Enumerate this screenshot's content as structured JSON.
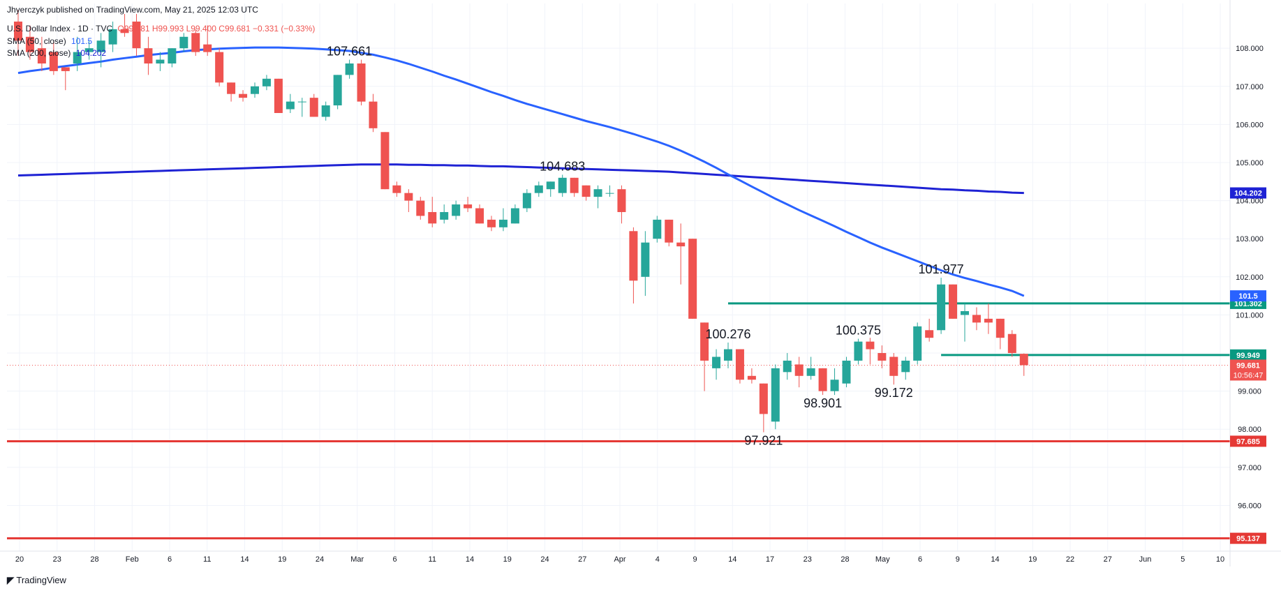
{
  "header": {
    "published_by": "Jhyerczyk published on TradingView.com, May 21, 2025 12:03 UTC",
    "symbol": "U.S. Dollar Index · 1D · TVC",
    "ohlc": "O99.981 H99.993 L99.400 C99.681 −0.331 (−0.33%)",
    "sma50_label": "SMA (50, close)",
    "sma50_value": "101.5",
    "sma200_label": "SMA (200, close)",
    "sma200_value": "104.202"
  },
  "footer": {
    "logo_text": "TradingView"
  },
  "colors": {
    "up": "#26a69a",
    "down": "#ef5350",
    "sma50": "#2962ff",
    "sma200": "#1e22d4",
    "support_red": "#e53935",
    "resistance_green": "#089981",
    "grid": "#f0f3fa",
    "axis_text": "#131722"
  },
  "chart_data": {
    "type": "candlestick",
    "title": "U.S. Dollar Index · 1D · TVC",
    "ylim": [
      94.8,
      108.9
    ],
    "y_ticks": [
      "96.000",
      "97.000",
      "98.000",
      "99.000",
      "100.000",
      "101.000",
      "102.000",
      "103.000",
      "104.000",
      "105.000",
      "106.000",
      "107.000",
      "108.000"
    ],
    "x_ticks": [
      "20",
      "23",
      "28",
      "Feb",
      "6",
      "11",
      "14",
      "19",
      "24",
      "Mar",
      "6",
      "11",
      "14",
      "19",
      "24",
      "27",
      "Apr",
      "4",
      "9",
      "14",
      "17",
      "23",
      "28",
      "May",
      "6",
      "9",
      "14",
      "19",
      "22",
      "27",
      "Jun",
      "5",
      "10"
    ],
    "grid": true,
    "candles": [
      {
        "o": 108.7,
        "h": 109.0,
        "l": 107.8,
        "c": 108.2
      },
      {
        "o": 108.3,
        "h": 108.6,
        "l": 107.7,
        "c": 107.9
      },
      {
        "o": 108.0,
        "h": 108.3,
        "l": 107.4,
        "c": 107.6
      },
      {
        "o": 107.9,
        "h": 108.2,
        "l": 107.3,
        "c": 107.4
      },
      {
        "o": 107.5,
        "h": 107.5,
        "l": 106.9,
        "c": 107.4
      },
      {
        "o": 107.6,
        "h": 108.3,
        "l": 107.4,
        "c": 107.9
      },
      {
        "o": 107.9,
        "h": 108.2,
        "l": 107.7,
        "c": 108.0
      },
      {
        "o": 107.9,
        "h": 108.4,
        "l": 107.5,
        "c": 108.2
      },
      {
        "o": 108.1,
        "h": 108.7,
        "l": 107.9,
        "c": 108.5
      },
      {
        "o": 108.5,
        "h": 108.9,
        "l": 108.3,
        "c": 108.4
      },
      {
        "o": 108.7,
        "h": 108.9,
        "l": 107.8,
        "c": 108.0
      },
      {
        "o": 108.0,
        "h": 108.3,
        "l": 107.3,
        "c": 107.6
      },
      {
        "o": 107.6,
        "h": 107.9,
        "l": 107.4,
        "c": 107.7
      },
      {
        "o": 107.6,
        "h": 108.0,
        "l": 107.5,
        "c": 108.0
      },
      {
        "o": 108.0,
        "h": 108.4,
        "l": 107.9,
        "c": 108.3
      },
      {
        "o": 108.4,
        "h": 108.5,
        "l": 107.8,
        "c": 107.9
      },
      {
        "o": 108.1,
        "h": 108.6,
        "l": 107.8,
        "c": 107.9
      },
      {
        "o": 107.9,
        "h": 108.0,
        "l": 107.0,
        "c": 107.1
      },
      {
        "o": 107.1,
        "h": 107.1,
        "l": 106.6,
        "c": 106.8
      },
      {
        "o": 106.8,
        "h": 106.9,
        "l": 106.6,
        "c": 106.7
      },
      {
        "o": 106.8,
        "h": 107.1,
        "l": 106.7,
        "c": 107.0
      },
      {
        "o": 107.0,
        "h": 107.3,
        "l": 106.9,
        "c": 107.2
      },
      {
        "o": 107.2,
        "h": 107.2,
        "l": 106.3,
        "c": 106.3
      },
      {
        "o": 106.4,
        "h": 106.8,
        "l": 106.3,
        "c": 106.6
      },
      {
        "o": 106.6,
        "h": 106.7,
        "l": 106.2,
        "c": 106.6
      },
      {
        "o": 106.7,
        "h": 106.8,
        "l": 106.2,
        "c": 106.2
      },
      {
        "o": 106.2,
        "h": 106.6,
        "l": 106.1,
        "c": 106.5
      },
      {
        "o": 106.5,
        "h": 107.3,
        "l": 106.4,
        "c": 107.3
      },
      {
        "o": 107.3,
        "h": 107.7,
        "l": 107.2,
        "c": 107.6
      },
      {
        "o": 107.6,
        "h": 107.7,
        "l": 106.5,
        "c": 106.6
      },
      {
        "o": 106.6,
        "h": 106.8,
        "l": 105.8,
        "c": 105.9
      },
      {
        "o": 105.8,
        "h": 105.8,
        "l": 104.3,
        "c": 104.3
      },
      {
        "o": 104.4,
        "h": 104.5,
        "l": 104.1,
        "c": 104.2
      },
      {
        "o": 104.2,
        "h": 104.3,
        "l": 103.7,
        "c": 104.0
      },
      {
        "o": 104.0,
        "h": 104.1,
        "l": 103.5,
        "c": 103.6
      },
      {
        "o": 103.7,
        "h": 104.1,
        "l": 103.3,
        "c": 103.4
      },
      {
        "o": 103.5,
        "h": 103.9,
        "l": 103.4,
        "c": 103.7
      },
      {
        "o": 103.6,
        "h": 104.0,
        "l": 103.5,
        "c": 103.9
      },
      {
        "o": 103.9,
        "h": 104.1,
        "l": 103.7,
        "c": 103.8
      },
      {
        "o": 103.8,
        "h": 103.9,
        "l": 103.4,
        "c": 103.4
      },
      {
        "o": 103.5,
        "h": 103.6,
        "l": 103.2,
        "c": 103.3
      },
      {
        "o": 103.3,
        "h": 103.8,
        "l": 103.2,
        "c": 103.5
      },
      {
        "o": 103.4,
        "h": 103.9,
        "l": 103.4,
        "c": 103.8
      },
      {
        "o": 103.8,
        "h": 104.3,
        "l": 103.7,
        "c": 104.2
      },
      {
        "o": 104.2,
        "h": 104.5,
        "l": 104.1,
        "c": 104.4
      },
      {
        "o": 104.3,
        "h": 104.5,
        "l": 104.1,
        "c": 104.5
      },
      {
        "o": 104.2,
        "h": 104.68,
        "l": 104.1,
        "c": 104.6
      },
      {
        "o": 104.6,
        "h": 104.6,
        "l": 104.1,
        "c": 104.2
      },
      {
        "o": 104.4,
        "h": 104.4,
        "l": 104.0,
        "c": 104.1
      },
      {
        "o": 104.1,
        "h": 104.4,
        "l": 103.8,
        "c": 104.3
      },
      {
        "o": 104.2,
        "h": 104.4,
        "l": 104.1,
        "c": 104.2
      },
      {
        "o": 104.3,
        "h": 104.4,
        "l": 103.4,
        "c": 103.7
      },
      {
        "o": 103.2,
        "h": 103.3,
        "l": 101.3,
        "c": 101.9
      },
      {
        "o": 102.0,
        "h": 103.2,
        "l": 101.5,
        "c": 102.9
      },
      {
        "o": 103.0,
        "h": 103.6,
        "l": 102.9,
        "c": 103.5
      },
      {
        "o": 103.5,
        "h": 103.5,
        "l": 102.8,
        "c": 102.9
      },
      {
        "o": 102.9,
        "h": 103.4,
        "l": 101.8,
        "c": 102.8
      },
      {
        "o": 103.0,
        "h": 103.0,
        "l": 100.9,
        "c": 100.9
      },
      {
        "o": 100.8,
        "h": 100.8,
        "l": 99.0,
        "c": 99.8
      },
      {
        "o": 99.6,
        "h": 100.1,
        "l": 99.3,
        "c": 99.9
      },
      {
        "o": 99.8,
        "h": 100.276,
        "l": 99.6,
        "c": 100.1
      },
      {
        "o": 100.1,
        "h": 100.1,
        "l": 99.2,
        "c": 99.3
      },
      {
        "o": 99.4,
        "h": 99.6,
        "l": 99.2,
        "c": 99.3
      },
      {
        "o": 99.2,
        "h": 99.2,
        "l": 97.921,
        "c": 98.4
      },
      {
        "o": 98.2,
        "h": 99.7,
        "l": 98.0,
        "c": 99.6
      },
      {
        "o": 99.5,
        "h": 100.0,
        "l": 99.3,
        "c": 99.8
      },
      {
        "o": 99.7,
        "h": 99.9,
        "l": 99.1,
        "c": 99.4
      },
      {
        "o": 99.4,
        "h": 99.9,
        "l": 99.3,
        "c": 99.6
      },
      {
        "o": 99.6,
        "h": 99.6,
        "l": 98.901,
        "c": 99.0
      },
      {
        "o": 99.0,
        "h": 99.6,
        "l": 98.9,
        "c": 99.3
      },
      {
        "o": 99.2,
        "h": 99.9,
        "l": 99.1,
        "c": 99.8
      },
      {
        "o": 99.8,
        "h": 100.375,
        "l": 99.7,
        "c": 100.3
      },
      {
        "o": 100.3,
        "h": 100.4,
        "l": 99.7,
        "c": 100.1
      },
      {
        "o": 100.0,
        "h": 100.2,
        "l": 99.6,
        "c": 99.8
      },
      {
        "o": 99.9,
        "h": 100.0,
        "l": 99.172,
        "c": 99.4
      },
      {
        "o": 99.5,
        "h": 99.9,
        "l": 99.3,
        "c": 99.8
      },
      {
        "o": 99.8,
        "h": 100.8,
        "l": 99.7,
        "c": 100.7
      },
      {
        "o": 100.6,
        "h": 100.9,
        "l": 100.3,
        "c": 100.4
      },
      {
        "o": 100.6,
        "h": 101.977,
        "l": 100.5,
        "c": 101.8
      },
      {
        "o": 101.8,
        "h": 101.8,
        "l": 100.9,
        "c": 100.9
      },
      {
        "o": 101.0,
        "h": 101.3,
        "l": 100.3,
        "c": 101.1
      },
      {
        "o": 101.0,
        "h": 101.2,
        "l": 100.6,
        "c": 100.8
      },
      {
        "o": 100.9,
        "h": 101.3,
        "l": 100.5,
        "c": 100.8
      },
      {
        "o": 100.9,
        "h": 100.9,
        "l": 100.1,
        "c": 100.4
      },
      {
        "o": 100.5,
        "h": 100.6,
        "l": 99.9,
        "c": 100.0
      },
      {
        "o": 99.98,
        "h": 99.99,
        "l": 99.4,
        "c": 99.68
      }
    ],
    "sma50": [
      107.35,
      107.4,
      107.44,
      107.49,
      107.53,
      107.57,
      107.61,
      107.65,
      107.7,
      107.74,
      107.78,
      107.82,
      107.85,
      107.88,
      107.92,
      107.95,
      107.97,
      107.99,
      108.0,
      108.01,
      108.02,
      108.02,
      108.02,
      108.01,
      108.0,
      107.99,
      107.97,
      107.95,
      107.93,
      107.88,
      107.83,
      107.76,
      107.68,
      107.59,
      107.49,
      107.39,
      107.28,
      107.18,
      107.07,
      106.96,
      106.85,
      106.75,
      106.64,
      106.54,
      106.45,
      106.36,
      106.27,
      106.18,
      106.09,
      106.01,
      105.93,
      105.84,
      105.75,
      105.65,
      105.55,
      105.44,
      105.31,
      105.17,
      105.02,
      104.86,
      104.69,
      104.53,
      104.37,
      104.21,
      104.05,
      103.9,
      103.75,
      103.61,
      103.47,
      103.33,
      103.18,
      103.04,
      102.9,
      102.77,
      102.65,
      102.53,
      102.41,
      102.29,
      102.17,
      102.06,
      101.97,
      101.89,
      101.8,
      101.72,
      101.63,
      101.5
    ],
    "sma200": [
      104.66,
      104.67,
      104.68,
      104.69,
      104.7,
      104.71,
      104.72,
      104.73,
      104.74,
      104.75,
      104.76,
      104.77,
      104.78,
      104.79,
      104.8,
      104.81,
      104.82,
      104.83,
      104.84,
      104.85,
      104.86,
      104.87,
      104.88,
      104.89,
      104.9,
      104.91,
      104.92,
      104.93,
      104.94,
      104.95,
      104.95,
      104.95,
      104.95,
      104.94,
      104.94,
      104.93,
      104.93,
      104.92,
      104.92,
      104.91,
      104.9,
      104.9,
      104.89,
      104.88,
      104.87,
      104.86,
      104.85,
      104.84,
      104.83,
      104.82,
      104.81,
      104.8,
      104.79,
      104.78,
      104.77,
      104.76,
      104.74,
      104.72,
      104.7,
      104.68,
      104.66,
      104.64,
      104.62,
      104.6,
      104.58,
      104.56,
      104.54,
      104.52,
      104.5,
      104.48,
      104.46,
      104.44,
      104.42,
      104.4,
      104.38,
      104.36,
      104.34,
      104.32,
      104.3,
      104.29,
      104.27,
      104.26,
      104.24,
      104.23,
      104.21,
      104.202
    ],
    "annotations": [
      {
        "text": "107.661",
        "candle": 28,
        "at": "high"
      },
      {
        "text": "104.683",
        "candle": 46,
        "at": "high"
      },
      {
        "text": "100.276",
        "candle": 60,
        "at": "high"
      },
      {
        "text": "97.921",
        "candle": 63,
        "at": "low"
      },
      {
        "text": "98.901",
        "candle": 68,
        "at": "low"
      },
      {
        "text": "100.375",
        "candle": 71,
        "at": "high"
      },
      {
        "text": "99.172",
        "candle": 74,
        "at": "low"
      },
      {
        "text": "101.977",
        "candle": 78,
        "at": "high"
      }
    ],
    "levels": [
      {
        "value": 101.302,
        "label": "101.302",
        "color": "#089981",
        "from_candle": 60
      },
      {
        "value": 99.949,
        "label": "99.949",
        "color": "#089981",
        "from_candle": 78
      },
      {
        "value": 97.685,
        "label": "97.685",
        "color": "#e53935",
        "from_candle": 0
      },
      {
        "value": 95.137,
        "label": "95.137",
        "color": "#e53935",
        "from_candle": 0
      }
    ],
    "price_badges": [
      {
        "value": 104.202,
        "label": "104.202",
        "color": "#1e22d4"
      },
      {
        "value": 101.5,
        "label": "101.5",
        "color": "#2962ff"
      },
      {
        "value": 99.681,
        "label": "99.681",
        "sub": "10:56:47",
        "color": "#ef5350"
      }
    ],
    "last_price": 99.681
  }
}
